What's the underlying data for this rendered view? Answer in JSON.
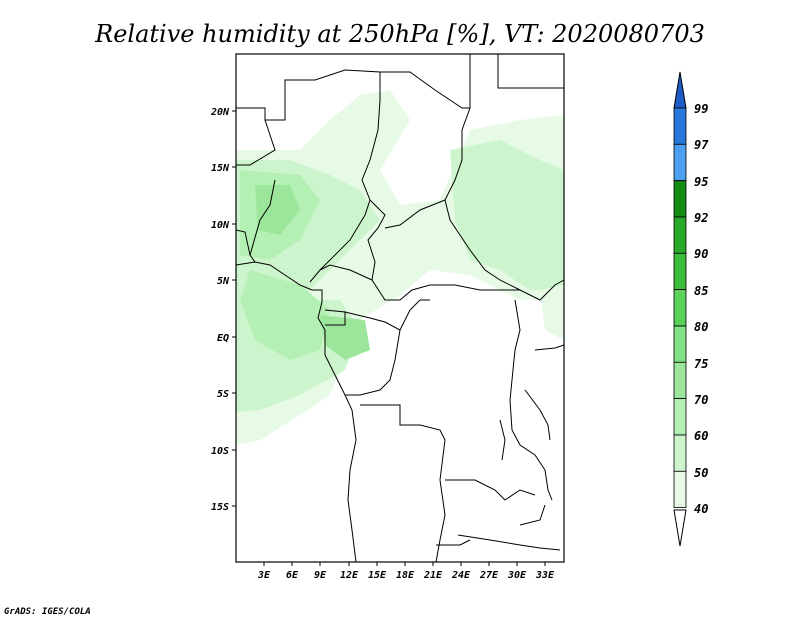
{
  "title": "Relative humidity at 250hPa [%], VT: 2020080703",
  "credit": "GrADS: IGES/COLA",
  "map": {
    "lon_labels": [
      "3E",
      "6E",
      "9E",
      "12E",
      "15E",
      "18E",
      "21E",
      "24E",
      "27E",
      "30E",
      "33E"
    ],
    "lat_labels": [
      "20N",
      "15N",
      "10N",
      "5N",
      "EQ",
      "5S",
      "10S",
      "15S"
    ],
    "lon_range": [
      0,
      35
    ],
    "lat_range": [
      -20,
      25
    ]
  },
  "colorbar": {
    "levels": [
      "40",
      "50",
      "60",
      "70",
      "75",
      "80",
      "85",
      "90",
      "92",
      "95",
      "97",
      "99"
    ],
    "colors": [
      "#ffffff",
      "#e6fae6",
      "#cdf5cd",
      "#b4f0b4",
      "#9be69b",
      "#82e182",
      "#5ad25a",
      "#3cbe3c",
      "#28aa28",
      "#168c16",
      "#4ba0f0",
      "#2878dc",
      "#1e5ac8"
    ]
  }
}
